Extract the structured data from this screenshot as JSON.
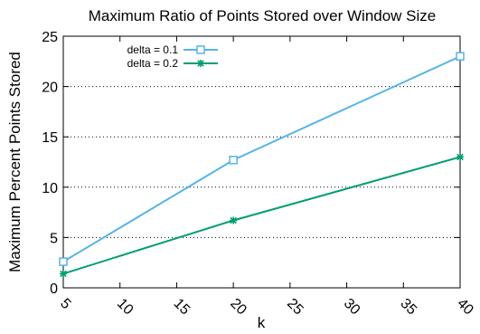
{
  "chart_data": {
    "type": "line",
    "title": "Maximum Ratio of Points Stored over Window Size",
    "xlabel": "k",
    "ylabel": "Maximum Percent Points Stored",
    "xlim": [
      5,
      40
    ],
    "ylim": [
      0,
      25
    ],
    "x_ticks": [
      "5",
      "10",
      "15",
      "20",
      "25",
      "30",
      "35",
      "40"
    ],
    "y_ticks": [
      "0",
      "5",
      "10",
      "15",
      "20",
      "25"
    ],
    "grid": "horizontal dotted",
    "legend_position": "top-left",
    "series": [
      {
        "name": "delta = 0.1",
        "color": "#56b4e9",
        "marker": "open-square",
        "x": [
          5,
          20,
          40
        ],
        "y": [
          2.6,
          12.7,
          23.0
        ]
      },
      {
        "name": "delta = 0.2",
        "color": "#009e73",
        "marker": "star",
        "x": [
          5,
          20,
          40
        ],
        "y": [
          1.4,
          6.7,
          13.0
        ]
      }
    ]
  }
}
